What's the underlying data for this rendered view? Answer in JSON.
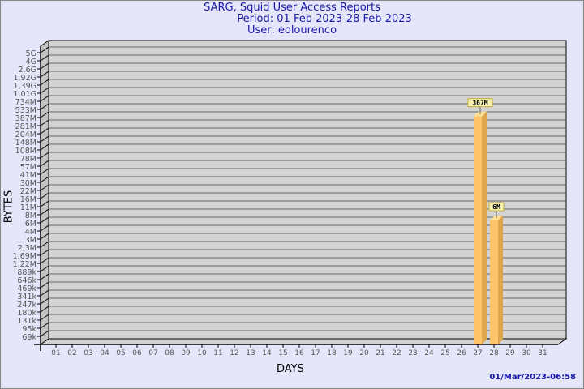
{
  "title": {
    "line1": "SARG, Squid User Access Reports",
    "line2": "Period: 01 Feb 2023-28 Feb 2023",
    "line3": "User: eolourenco"
  },
  "timestamp": "01/Mar/2023-06:58",
  "colors": {
    "background": "#e6e6fa",
    "wall": "#d3d3d3",
    "bar": "#ffc469",
    "bar_side": "#dca54e",
    "label_bg": "#f5f0b0",
    "title": "#1a1aa8"
  },
  "chart_data": {
    "type": "bar",
    "title": "SARG, Squid User Access Reports",
    "xlabel": "DAYS",
    "ylabel": "BYTES",
    "y_scale": "log",
    "grid": true,
    "y_ticks": [
      "5G",
      "4G",
      "2,6G",
      "1,92G",
      "1,39G",
      "1,01G",
      "734M",
      "533M",
      "387M",
      "281M",
      "204M",
      "148M",
      "108M",
      "78M",
      "57M",
      "41M",
      "30M",
      "22M",
      "16M",
      "11M",
      "8M",
      "6M",
      "4M",
      "3M",
      "2,3M",
      "1,69M",
      "1,22M",
      "889k",
      "646k",
      "469k",
      "341k",
      "247k",
      "180k",
      "131k",
      "95k",
      "69k"
    ],
    "categories": [
      "01",
      "02",
      "03",
      "04",
      "05",
      "06",
      "07",
      "08",
      "09",
      "10",
      "11",
      "12",
      "13",
      "14",
      "15",
      "16",
      "17",
      "18",
      "19",
      "20",
      "21",
      "22",
      "23",
      "24",
      "25",
      "26",
      "27",
      "28",
      "29",
      "30",
      "31"
    ],
    "bars": [
      {
        "day": "27",
        "value": 367000000,
        "label": "367M"
      },
      {
        "day": "28",
        "value": 6000000,
        "label": "6M"
      }
    ]
  }
}
